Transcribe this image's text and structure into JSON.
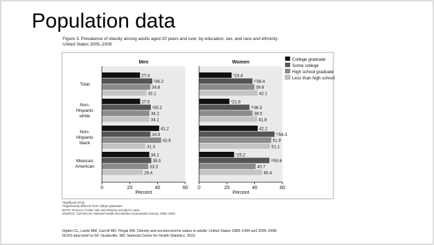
{
  "slide": {
    "title": "Population data",
    "caption_lines": [
      "Figure 3. Prevalence of obesity among adults aged 20 years and over, by education, sex, and race and ethnicity:",
      "United States 2005–2008"
    ],
    "footnotes": [
      "¹Significant trend.",
      "²³Significantly different from college graduates.",
      "NOTE: Persons of other race and ethnicity included in total.",
      "SOURCE: CDC/NCHS, National Health and Nutrition Examination Survey, 2005–2008."
    ],
    "citation_lines": [
      "Ogden CL, Lamb MM, Carroll MD, Flegal KM. Obesity and socioeconomic status in adults: United States 1988–1994 and 2005–2008.",
      "NCHS data brief no 50. Hyattsville, MD: National Center for Health Statistics. 2010."
    ]
  },
  "chart_data": {
    "type": "bar",
    "orientation": "horizontal",
    "panels": [
      "Men",
      "Women"
    ],
    "groups": [
      "Total",
      "Non-\nHispanic\nwhite",
      "Non-\nHispanic\nblack",
      "Mexican\nAmerican"
    ],
    "series": [
      {
        "name": "College graduate",
        "color": "#111111",
        "values": {
          "Men": [
            27.4,
            27.5,
            41.2,
            34.1
          ],
          "Women": [
            23.4,
            21.8,
            42.2,
            25.2
          ]
        }
      },
      {
        "name": "Some college",
        "color": "#555555",
        "values": {
          "Men": [
            36.2,
            35.2,
            34.9,
            35.5
          ],
          "Women": [
            38.4,
            36.3,
            54.3,
            50.6
          ]
        }
      },
      {
        "name": "High school graduate",
        "color": "#8c8c8c",
        "values": {
          "Men": [
            34.8,
            34.2,
            42.6,
            33.3
          ],
          "Women": [
            39.8,
            38.5,
            51.9,
            40.7
          ]
        }
      },
      {
        "name": "Less than high school",
        "color": "#c4c4c4",
        "values": {
          "Men": [
            32.1,
            34.1,
            31.3,
            29.4
          ],
          "Women": [
            42.1,
            41.8,
            51.1,
            45.4
          ]
        }
      }
    ],
    "labels": {
      "Men": [
        [
          "27.4",
          "²36.2",
          "34.8",
          "32.1"
        ],
        [
          "27.5",
          "²35.2",
          "34.2",
          "34.1"
        ],
        [
          "41.2",
          "34.9",
          "42.6",
          "31.3"
        ],
        [
          "34.1",
          "35.5",
          "33.3",
          "29.4"
        ]
      ],
      "Women": [
        [
          "¹23.4",
          "¹²38.4",
          "39.8",
          "42.1"
        ],
        [
          "¹21.8",
          "¹²36.3",
          "38.5",
          "41.8"
        ],
        [
          "42.2",
          "¹²54.3",
          "51.9",
          "51.1"
        ],
        [
          "¹25.2",
          "¹²50.6",
          "40.7",
          "45.4"
        ]
      ]
    },
    "xlabel": "Percent",
    "xlim": [
      0,
      60
    ],
    "xticks": [
      0,
      20,
      40,
      60
    ],
    "legend_placement": "top-right",
    "plot_background": "#eaeaea"
  }
}
